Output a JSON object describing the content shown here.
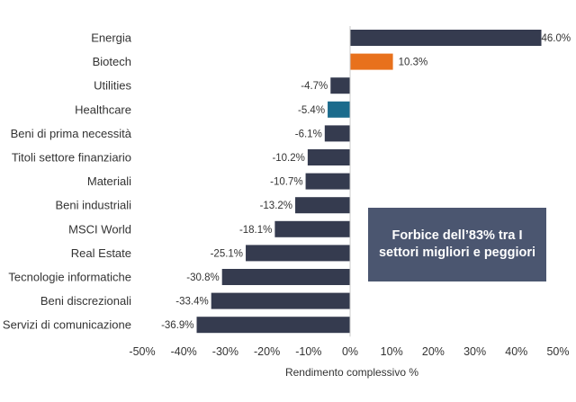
{
  "chart_data": {
    "type": "bar",
    "orientation": "horizontal",
    "categories": [
      "Energia",
      "Biotech",
      "Utilities",
      "Healthcare",
      "Beni di prima necessità",
      "Titoli settore finanziario",
      "Materiali",
      "Beni industriali",
      "MSCI World",
      "Real Estate",
      "Tecnologie informatiche",
      "Beni discrezionali",
      "Servizi di comunicazione"
    ],
    "values": [
      46.0,
      10.3,
      -4.7,
      -5.4,
      -6.1,
      -10.2,
      -10.7,
      -13.2,
      -18.1,
      -25.1,
      -30.8,
      -33.4,
      -36.9
    ],
    "value_labels": [
      "46.0%",
      "10.3%",
      "-4.7%",
      "-5.4%",
      "-6.1%",
      "-10.2%",
      "-10.7%",
      "-13.2%",
      "-18.1%",
      "-25.1%",
      "-30.8%",
      "-33.4%",
      "-36.9%"
    ],
    "bar_colors": [
      "#353b4f",
      "#e8711c",
      "#353b4f",
      "#1b6b8c",
      "#353b4f",
      "#353b4f",
      "#353b4f",
      "#353b4f",
      "#353b4f",
      "#353b4f",
      "#353b4f",
      "#353b4f",
      "#353b4f"
    ],
    "xlim": [
      -50,
      50
    ],
    "xticks": [
      -50,
      -40,
      -30,
      -20,
      -10,
      0,
      10,
      20,
      30,
      40,
      50
    ],
    "xtick_labels": [
      "-50%",
      "-40%",
      "-30%",
      "-20%",
      "-10%",
      "0%",
      "10%",
      "20%",
      "30%",
      "40%",
      "50%"
    ],
    "xlabel": "Rendimento complessivo %",
    "ylabel": "",
    "title": "",
    "grid": false,
    "legend": "none",
    "annotation": {
      "text": "Forbice dell’83% tra I settori migliori e peggiori",
      "background": "#4b5670",
      "color": "#ffffff"
    },
    "axis_color": "#c8c8c8"
  }
}
